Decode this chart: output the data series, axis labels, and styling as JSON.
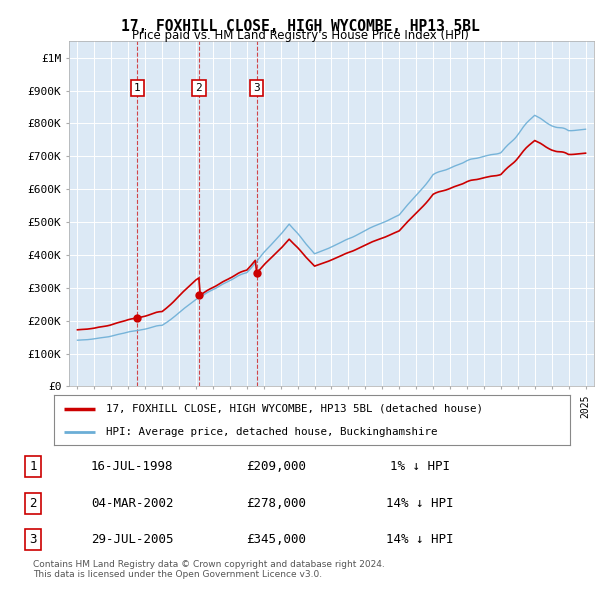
{
  "title": "17, FOXHILL CLOSE, HIGH WYCOMBE, HP13 5BL",
  "subtitle": "Price paid vs. HM Land Registry's House Price Index (HPI)",
  "background_color": "#ffffff",
  "plot_bg_color": "#dce9f5",
  "hpi_color": "#6baed6",
  "price_color": "#cc0000",
  "transactions": [
    {
      "date_str": "16-JUL-1998",
      "date_num": 1998.54,
      "price": 209000,
      "label": "1"
    },
    {
      "date_str": "04-MAR-2002",
      "date_num": 2002.17,
      "price": 278000,
      "label": "2"
    },
    {
      "date_str": "29-JUL-2005",
      "date_num": 2005.58,
      "price": 345000,
      "label": "3"
    }
  ],
  "legend_label_price": "17, FOXHILL CLOSE, HIGH WYCOMBE, HP13 5BL (detached house)",
  "legend_label_hpi": "HPI: Average price, detached house, Buckinghamshire",
  "table_rows": [
    {
      "num": "1",
      "date": "16-JUL-1998",
      "price": "£209,000",
      "hpi": "1% ↓ HPI"
    },
    {
      "num": "2",
      "date": "04-MAR-2002",
      "price": "£278,000",
      "hpi": "14% ↓ HPI"
    },
    {
      "num": "3",
      "date": "29-JUL-2005",
      "price": "£345,000",
      "hpi": "14% ↓ HPI"
    }
  ],
  "footer": "Contains HM Land Registry data © Crown copyright and database right 2024.\nThis data is licensed under the Open Government Licence v3.0.",
  "ylim": [
    0,
    1050000
  ],
  "xlim": [
    1994.5,
    2025.5
  ],
  "yticks": [
    0,
    100000,
    200000,
    300000,
    400000,
    500000,
    600000,
    700000,
    800000,
    900000,
    1000000
  ],
  "ytick_labels": [
    "£0",
    "£100K",
    "£200K",
    "£300K",
    "£400K",
    "£500K",
    "£600K",
    "£700K",
    "£800K",
    "£900K",
    "£1M"
  ]
}
